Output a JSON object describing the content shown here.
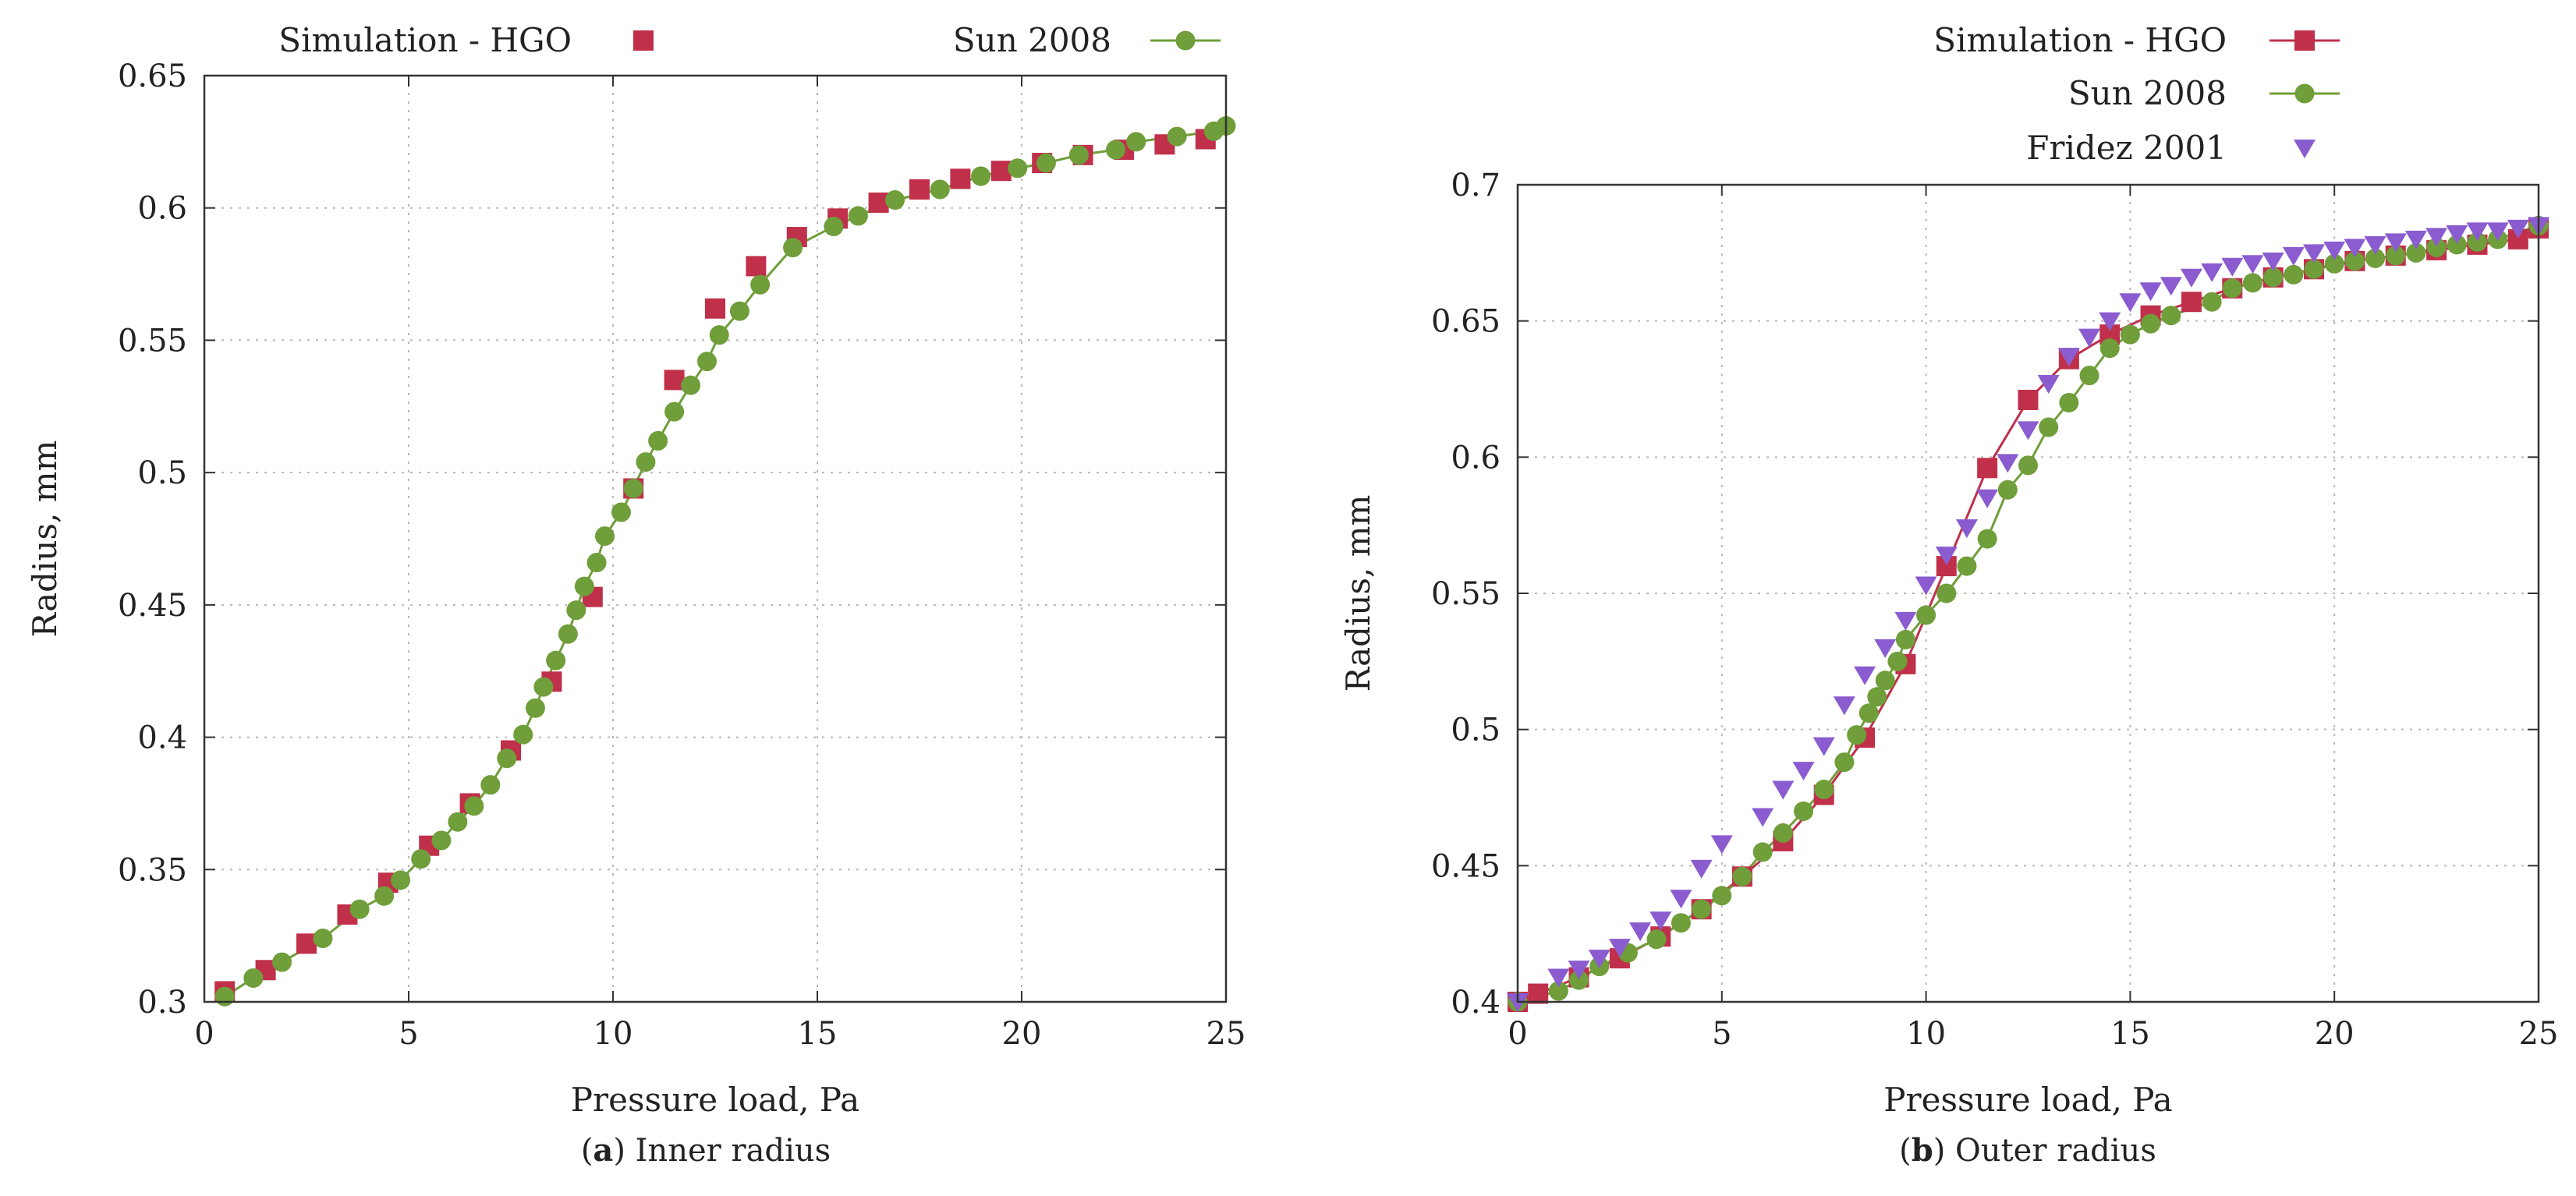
{
  "chart_data": [
    {
      "type": "scatter",
      "caption_letter": "a",
      "caption_text": "Inner radius",
      "xlabel": "Pressure load, Pa",
      "ylabel": "Radius, mm",
      "xlim": [
        0,
        25
      ],
      "ylim": [
        0.3,
        0.65
      ],
      "xticks": [
        0,
        5,
        10,
        15,
        20,
        25
      ],
      "yticks": [
        0.3,
        0.35,
        0.4,
        0.45,
        0.5,
        0.55,
        0.6,
        0.65
      ],
      "grid": true,
      "legend_position": "top, outside, horizontal",
      "series": [
        {
          "name": "Simulation - HGO",
          "marker": "square",
          "line": false,
          "color": "#c0304a",
          "x": [
            0.5,
            1.5,
            2.5,
            3.5,
            4.5,
            5.5,
            6.5,
            7.5,
            8.5,
            9.5,
            10.5,
            11.5,
            12.5,
            13.5,
            14.5,
            15.5,
            16.5,
            17.5,
            18.5,
            19.5,
            20.5,
            21.5,
            22.5,
            23.5,
            24.5
          ],
          "y": [
            0.304,
            0.312,
            0.322,
            0.333,
            0.345,
            0.359,
            0.375,
            0.395,
            0.421,
            0.453,
            0.494,
            0.535,
            0.562,
            0.578,
            0.589,
            0.596,
            0.602,
            0.607,
            0.611,
            0.614,
            0.617,
            0.62,
            0.622,
            0.624,
            0.626
          ]
        },
        {
          "name": "Sun 2008",
          "marker": "circle",
          "line": true,
          "color": "#6f9e3a",
          "x": [
            0.5,
            1.2,
            1.9,
            2.9,
            3.8,
            4.4,
            4.8,
            5.3,
            5.8,
            6.2,
            6.6,
            7.0,
            7.4,
            7.8,
            8.1,
            8.3,
            8.6,
            8.9,
            9.1,
            9.3,
            9.6,
            9.8,
            10.2,
            10.5,
            10.8,
            11.1,
            11.5,
            11.9,
            12.3,
            12.6,
            13.1,
            13.6,
            14.4,
            15.4,
            16.0,
            16.9,
            18.0,
            19.0,
            19.9,
            20.6,
            21.4,
            22.3,
            22.8,
            23.8,
            24.7,
            25.0
          ],
          "y": [
            0.302,
            0.309,
            0.315,
            0.324,
            0.335,
            0.34,
            0.346,
            0.354,
            0.361,
            0.368,
            0.374,
            0.382,
            0.392,
            0.401,
            0.411,
            0.419,
            0.429,
            0.439,
            0.448,
            0.457,
            0.466,
            0.476,
            0.485,
            0.494,
            0.504,
            0.512,
            0.523,
            0.533,
            0.542,
            0.552,
            0.561,
            0.571,
            0.585,
            0.593,
            0.597,
            0.603,
            0.607,
            0.612,
            0.615,
            0.617,
            0.62,
            0.622,
            0.625,
            0.627,
            0.629,
            0.631
          ]
        }
      ]
    },
    {
      "type": "scatter",
      "caption_letter": "b",
      "caption_text": "Outer radius",
      "xlabel": "Pressure load, Pa",
      "ylabel": "Radius, mm",
      "xlim": [
        0,
        25
      ],
      "ylim": [
        0.4,
        0.7
      ],
      "xticks": [
        0,
        5,
        10,
        15,
        20,
        25
      ],
      "yticks": [
        0.4,
        0.45,
        0.5,
        0.55,
        0.6,
        0.65,
        0.7
      ],
      "grid": true,
      "legend_position": "top-right, outside, vertical",
      "series": [
        {
          "name": "Simulation - HGO",
          "marker": "square",
          "line": true,
          "color": "#c0304a",
          "x": [
            0.0,
            0.5,
            1.5,
            2.5,
            3.5,
            4.5,
            5.5,
            6.5,
            7.5,
            8.5,
            9.5,
            10.5,
            11.5,
            12.5,
            13.5,
            14.5,
            15.5,
            16.5,
            17.5,
            18.5,
            19.5,
            20.5,
            21.5,
            22.5,
            23.5,
            24.5,
            25.0
          ],
          "y": [
            0.4,
            0.403,
            0.409,
            0.416,
            0.424,
            0.434,
            0.446,
            0.459,
            0.476,
            0.497,
            0.524,
            0.56,
            0.596,
            0.621,
            0.636,
            0.645,
            0.652,
            0.657,
            0.662,
            0.666,
            0.669,
            0.672,
            0.674,
            0.676,
            0.678,
            0.68,
            0.684
          ]
        },
        {
          "name": "Sun 2008",
          "marker": "circle",
          "line": true,
          "color": "#6f9e3a",
          "x": [
            0.0,
            1.0,
            1.5,
            2.0,
            2.7,
            3.4,
            4.0,
            4.5,
            5.0,
            5.5,
            6.0,
            6.5,
            7.0,
            7.5,
            8.0,
            8.3,
            8.6,
            8.8,
            9.0,
            9.3,
            9.5,
            10.0,
            10.5,
            11.0,
            11.5,
            12.0,
            12.5,
            13.0,
            13.5,
            14.0,
            14.5,
            15.0,
            15.5,
            16.0,
            17.0,
            17.5,
            18.0,
            18.5,
            19.0,
            19.5,
            20.0,
            20.5,
            21.0,
            21.5,
            22.0,
            22.5,
            23.0,
            23.5,
            24.0,
            25.0
          ],
          "y": [
            0.4,
            0.404,
            0.408,
            0.413,
            0.418,
            0.423,
            0.429,
            0.434,
            0.439,
            0.446,
            0.455,
            0.462,
            0.47,
            0.478,
            0.488,
            0.498,
            0.506,
            0.512,
            0.518,
            0.525,
            0.533,
            0.542,
            0.55,
            0.56,
            0.57,
            0.588,
            0.597,
            0.611,
            0.62,
            0.63,
            0.64,
            0.645,
            0.649,
            0.652,
            0.657,
            0.662,
            0.664,
            0.666,
            0.667,
            0.669,
            0.671,
            0.672,
            0.673,
            0.674,
            0.675,
            0.677,
            0.678,
            0.679,
            0.68,
            0.685
          ]
        },
        {
          "name": "Fridez 2001",
          "marker": "triangle-down",
          "line": false,
          "color": "#8a5ccf",
          "x": [
            0.0,
            1.0,
            1.5,
            2.0,
            2.5,
            3.0,
            3.5,
            4.0,
            4.5,
            5.0,
            6.0,
            6.5,
            7.0,
            7.5,
            8.0,
            8.5,
            9.0,
            9.5,
            10.0,
            10.5,
            11.0,
            11.5,
            12.0,
            12.5,
            13.0,
            13.5,
            14.0,
            14.5,
            15.0,
            15.5,
            16.0,
            16.5,
            17.0,
            17.5,
            18.0,
            18.5,
            19.0,
            19.5,
            20.0,
            20.5,
            21.0,
            21.5,
            22.0,
            22.5,
            23.0,
            23.5,
            24.0,
            24.5,
            25.0
          ],
          "y": [
            0.4,
            0.409,
            0.412,
            0.416,
            0.42,
            0.426,
            0.43,
            0.438,
            0.449,
            0.458,
            0.468,
            0.478,
            0.485,
            0.494,
            0.509,
            0.52,
            0.53,
            0.54,
            0.553,
            0.564,
            0.574,
            0.585,
            0.598,
            0.61,
            0.627,
            0.637,
            0.644,
            0.65,
            0.657,
            0.661,
            0.663,
            0.666,
            0.668,
            0.67,
            0.671,
            0.672,
            0.674,
            0.675,
            0.676,
            0.677,
            0.678,
            0.679,
            0.68,
            0.681,
            0.682,
            0.683,
            0.683,
            0.684,
            0.685
          ]
        }
      ]
    }
  ]
}
